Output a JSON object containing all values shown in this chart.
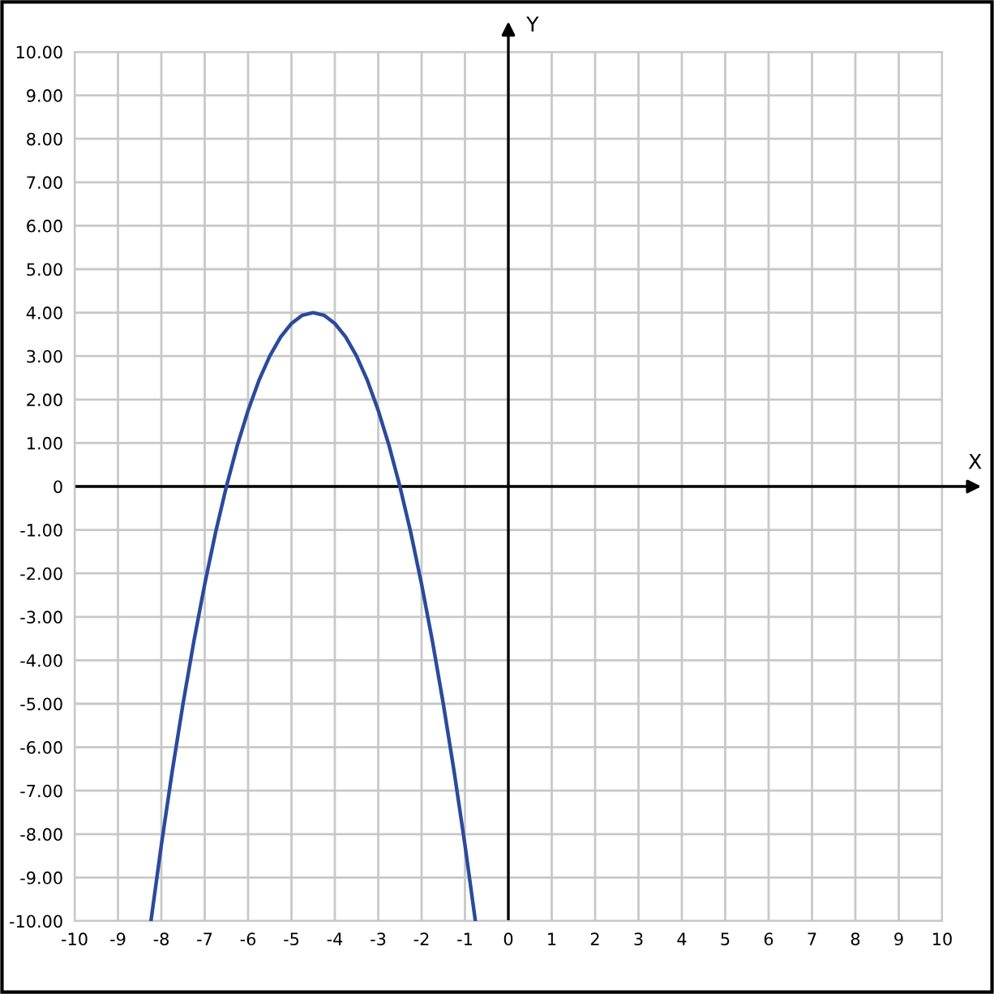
{
  "chart_data": {
    "type": "line",
    "xlabel": "X",
    "ylabel": "Y",
    "x": [
      -8.24,
      -8,
      -7.75,
      -7.5,
      -7.25,
      -7,
      -6.75,
      -6.5,
      -6.25,
      -6,
      -5.75,
      -5.5,
      -5.25,
      -5,
      -4.75,
      -4.5,
      -4.25,
      -4,
      -3.75,
      -3.5,
      -3.25,
      -3,
      -2.75,
      -2.5,
      -2.25,
      -2,
      -1.75,
      -1.5,
      -1.25,
      -1,
      -0.76
    ],
    "series": [
      {
        "color": "#2b4a9c",
        "values": [
          -10,
          -8.25,
          -6.56,
          -5,
          -3.56,
          -2.25,
          -1.06,
          0,
          0.94,
          1.75,
          2.44,
          3,
          3.44,
          3.75,
          3.94,
          4,
          3.94,
          3.75,
          3.44,
          3,
          2.44,
          1.75,
          0.94,
          0,
          -1.06,
          -2.25,
          -3.56,
          -5,
          -6.56,
          -8.25,
          -10
        ]
      }
    ],
    "xlim": [
      -10,
      10
    ],
    "ylim": [
      -10,
      10
    ],
    "xticks": [
      -10,
      -9,
      -8,
      -7,
      -6,
      -5,
      -4,
      -3,
      -2,
      -1,
      0,
      1,
      2,
      3,
      4,
      5,
      6,
      7,
      8,
      9,
      10
    ],
    "yticks": [
      {
        "value": -10,
        "label": "-10.00"
      },
      {
        "value": -9,
        "label": "-9.00"
      },
      {
        "value": -8,
        "label": "-8.00"
      },
      {
        "value": -7,
        "label": "-7.00"
      },
      {
        "value": -6,
        "label": "-6.00"
      },
      {
        "value": -5,
        "label": "-5.00"
      },
      {
        "value": -4,
        "label": "-4.00"
      },
      {
        "value": -3,
        "label": "-3.00"
      },
      {
        "value": -2,
        "label": "-2.00"
      },
      {
        "value": -1,
        "label": "-1.00"
      },
      0,
      {
        "value": 1,
        "label": "1.00"
      },
      {
        "value": 2,
        "label": "2.00"
      },
      {
        "value": 3,
        "label": "3.00"
      },
      {
        "value": 4,
        "label": "4.00"
      },
      {
        "value": 5,
        "label": "5.00"
      },
      {
        "value": 6,
        "label": "6.00"
      },
      {
        "value": 7,
        "label": "7.00"
      },
      {
        "value": 8,
        "label": "8.00"
      },
      {
        "value": 9,
        "label": "9.00"
      },
      {
        "value": 10,
        "label": "10.00"
      }
    ],
    "grid": true,
    "marker": "none",
    "line_style": "solid"
  }
}
